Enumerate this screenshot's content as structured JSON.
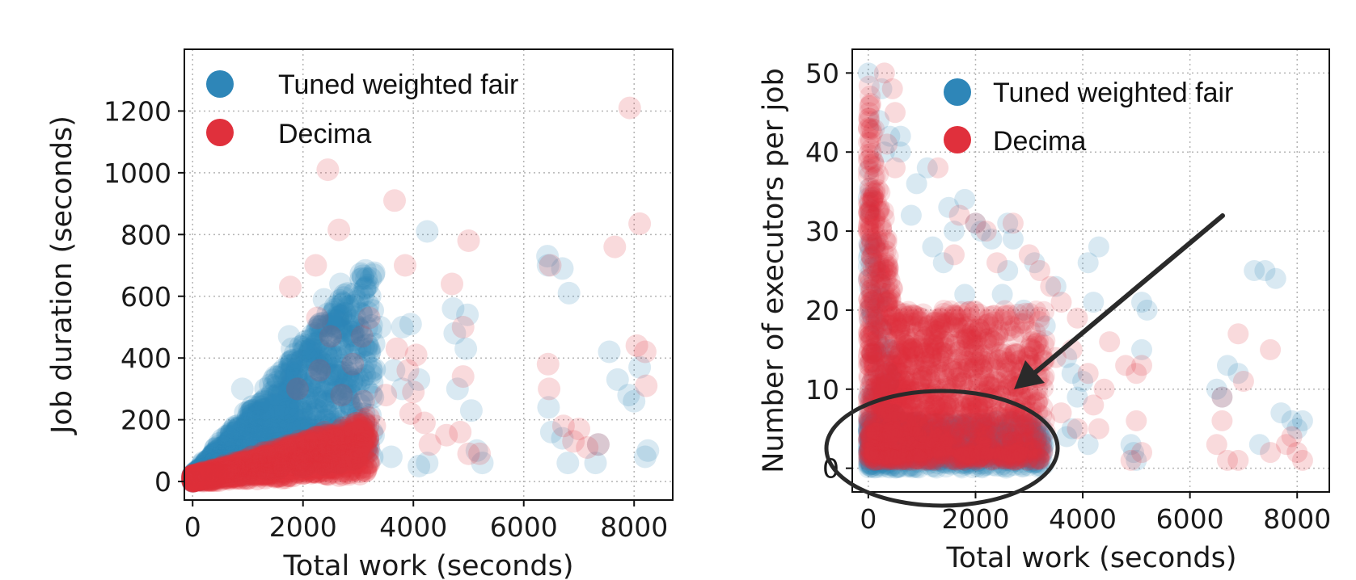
{
  "colors": {
    "series_a": "#2E86B8",
    "series_b": "#E0303C",
    "grid": "#b5b5b5",
    "arrow": "#2a2a2a"
  },
  "chart_data": [
    {
      "type": "scatter",
      "xlabel": "Total work (seconds)",
      "ylabel": "Job duration (seconds)",
      "xlim": [
        -150,
        8700
      ],
      "ylim": [
        -60,
        1400
      ],
      "xticks": [
        0,
        2000,
        4000,
        6000,
        8000
      ],
      "yticks": [
        0,
        200,
        400,
        600,
        800,
        1000,
        1200
      ],
      "grid": true,
      "legend_position": "top-left",
      "series": [
        {
          "name": "Tuned weighted fair",
          "color": "#2E86B8",
          "cluster": {
            "x_max": 3300,
            "y_slope_low": 0.02,
            "y_slope_high": 0.22,
            "n": 1400
          },
          "points": [
            [
              4250,
              810
            ],
            [
              6430,
              730
            ],
            [
              6700,
              690
            ],
            [
              6440,
              700
            ],
            [
              6820,
              610
            ],
            [
              3280,
              670
            ],
            [
              2680,
              640
            ],
            [
              2380,
              590
            ],
            [
              4720,
              560
            ],
            [
              4980,
              540
            ],
            [
              3950,
              510
            ],
            [
              3800,
              500
            ],
            [
              1750,
              470
            ],
            [
              1800,
              430
            ],
            [
              2100,
              340
            ],
            [
              2900,
              520
            ],
            [
              3200,
              430
            ],
            [
              3800,
              300
            ],
            [
              4100,
              330
            ],
            [
              4950,
              430
            ],
            [
              5050,
              230
            ],
            [
              5150,
              100
            ],
            [
              5250,
              60
            ],
            [
              7550,
              420
            ],
            [
              7700,
              330
            ],
            [
              7900,
              280
            ],
            [
              8000,
              260
            ],
            [
              8100,
              370
            ],
            [
              8250,
              100
            ],
            [
              8200,
              80
            ],
            [
              6450,
              240
            ],
            [
              6500,
              160
            ],
            [
              6700,
              140
            ],
            [
              6800,
              60
            ],
            [
              7300,
              60
            ],
            [
              7350,
              120
            ],
            [
              4100,
              50
            ],
            [
              4250,
              60
            ],
            [
              3600,
              80
            ],
            [
              4800,
              300
            ],
            [
              4750,
              480
            ],
            [
              2250,
              350
            ],
            [
              2600,
              520
            ],
            [
              3100,
              360
            ],
            [
              3400,
              500
            ],
            [
              3650,
              360
            ],
            [
              1200,
              250
            ],
            [
              900,
              300
            ],
            [
              1500,
              340
            ],
            [
              2700,
              420
            ]
          ]
        },
        {
          "name": "Decima",
          "color": "#E0303C",
          "cluster": {
            "x_max": 3200,
            "y_slope_low": 0.005,
            "y_slope_high": 0.06,
            "n": 1400
          },
          "points": [
            [
              7920,
              1210
            ],
            [
              2450,
              1010
            ],
            [
              2650,
              815
            ],
            [
              8100,
              835
            ],
            [
              3660,
              910
            ],
            [
              2230,
              700
            ],
            [
              1770,
              630
            ],
            [
              3850,
              700
            ],
            [
              4700,
              640
            ],
            [
              5000,
              780
            ],
            [
              7650,
              760
            ],
            [
              2260,
              530
            ],
            [
              2500,
              470
            ],
            [
              3070,
              470
            ],
            [
              3200,
              530
            ],
            [
              3700,
              430
            ],
            [
              4050,
              410
            ],
            [
              4900,
              500
            ],
            [
              4900,
              340
            ],
            [
              6440,
              380
            ],
            [
              6460,
              300
            ],
            [
              6480,
              700
            ],
            [
              6720,
              180
            ],
            [
              6900,
              130
            ],
            [
              7000,
              170
            ],
            [
              7150,
              110
            ],
            [
              7350,
              120
            ],
            [
              8050,
              440
            ],
            [
              8200,
              420
            ],
            [
              8220,
              310
            ],
            [
              4850,
              160
            ],
            [
              5000,
              90
            ],
            [
              5200,
              90
            ],
            [
              3900,
              360
            ],
            [
              3950,
              220
            ],
            [
              4200,
              190
            ],
            [
              4300,
              120
            ],
            [
              4000,
              290
            ],
            [
              3500,
              280
            ],
            [
              2900,
              380
            ],
            [
              2300,
              360
            ],
            [
              3300,
              180
            ],
            [
              4600,
              150
            ],
            [
              2700,
              280
            ],
            [
              3100,
              260
            ],
            [
              1900,
              300
            ]
          ]
        }
      ]
    },
    {
      "type": "scatter",
      "xlabel": "Total work (seconds)",
      "ylabel": "Number of executors per job",
      "xlim": [
        -300,
        8600
      ],
      "ylim": [
        -3,
        53
      ],
      "xticks": [
        0,
        2000,
        4000,
        6000,
        8000
      ],
      "yticks": [
        0,
        10,
        20,
        30,
        40,
        50
      ],
      "grid": true,
      "legend_position": "top-center",
      "annotations": [
        "arrow",
        "ellipse"
      ],
      "series": [
        {
          "name": "Tuned weighted fair",
          "color": "#2E86B8",
          "cluster": {
            "x_max": 3300,
            "y_band": [
              0,
              6
            ],
            "n": 900
          },
          "points": [
            [
              0,
              50
            ],
            [
              250,
              48
            ],
            [
              200,
              44
            ],
            [
              400,
              42
            ],
            [
              600,
              42
            ],
            [
              300,
              40
            ],
            [
              600,
              40
            ],
            [
              1100,
              38
            ],
            [
              900,
              36
            ],
            [
              800,
              32
            ],
            [
              1500,
              33
            ],
            [
              1800,
              34
            ],
            [
              1600,
              30
            ],
            [
              2000,
              31
            ],
            [
              2100,
              30
            ],
            [
              2600,
              31
            ],
            [
              1200,
              28
            ],
            [
              1400,
              26
            ],
            [
              2300,
              29
            ],
            [
              2700,
              29
            ],
            [
              2600,
              25
            ],
            [
              3100,
              26
            ],
            [
              3500,
              23
            ],
            [
              4100,
              26
            ],
            [
              4300,
              28
            ],
            [
              4200,
              21
            ],
            [
              5100,
              21
            ],
            [
              5200,
              20
            ],
            [
              5100,
              15
            ],
            [
              7200,
              25
            ],
            [
              7400,
              25
            ],
            [
              7600,
              24
            ],
            [
              6900,
              12
            ],
            [
              6700,
              13
            ],
            [
              6500,
              10
            ],
            [
              6600,
              9
            ],
            [
              7700,
              7
            ],
            [
              7900,
              6
            ],
            [
              8100,
              6
            ],
            [
              8000,
              5
            ],
            [
              7300,
              3
            ],
            [
              4900,
              3
            ],
            [
              4950,
              2
            ],
            [
              5000,
              1
            ],
            [
              3900,
              9
            ],
            [
              3800,
              12
            ],
            [
              3700,
              14
            ],
            [
              4000,
              11
            ],
            [
              3800,
              5
            ],
            [
              4100,
              3
            ],
            [
              3700,
              4
            ],
            [
              2900,
              20
            ],
            [
              3300,
              18
            ],
            [
              2500,
              22
            ],
            [
              1800,
              22
            ]
          ]
        },
        {
          "name": "Decima",
          "color": "#E0303C",
          "cluster": {
            "x_max": 3300,
            "y_band": [
              1,
              20
            ],
            "n": 1600
          },
          "points": [
            [
              300,
              50
            ],
            [
              450,
              48
            ],
            [
              500,
              45
            ],
            [
              350,
              41
            ],
            [
              500,
              38
            ],
            [
              1300,
              38
            ],
            [
              1700,
              32
            ],
            [
              2000,
              31
            ],
            [
              2200,
              30
            ],
            [
              2700,
              31
            ],
            [
              3000,
              27
            ],
            [
              3200,
              25
            ],
            [
              2400,
              26
            ],
            [
              1600,
              27
            ],
            [
              3400,
              23
            ],
            [
              3600,
              21
            ],
            [
              3900,
              19
            ],
            [
              4500,
              16
            ],
            [
              4800,
              13
            ],
            [
              5000,
              12
            ],
            [
              5100,
              13
            ],
            [
              6900,
              17
            ],
            [
              7500,
              15
            ],
            [
              7000,
              11
            ],
            [
              6600,
              9
            ],
            [
              6600,
              6
            ],
            [
              6500,
              3
            ],
            [
              6700,
              1
            ],
            [
              6900,
              1
            ],
            [
              7500,
              2
            ],
            [
              7800,
              3
            ],
            [
              8000,
              2
            ],
            [
              8100,
              1
            ],
            [
              7900,
              4
            ],
            [
              5000,
              6
            ],
            [
              5100,
              2
            ],
            [
              4900,
              1
            ],
            [
              4200,
              8
            ],
            [
              4300,
              5
            ],
            [
              3900,
              5
            ],
            [
              3600,
              7
            ],
            [
              4400,
              10
            ],
            [
              4100,
              12
            ],
            [
              3800,
              15
            ],
            [
              3500,
              14
            ]
          ]
        }
      ]
    }
  ]
}
